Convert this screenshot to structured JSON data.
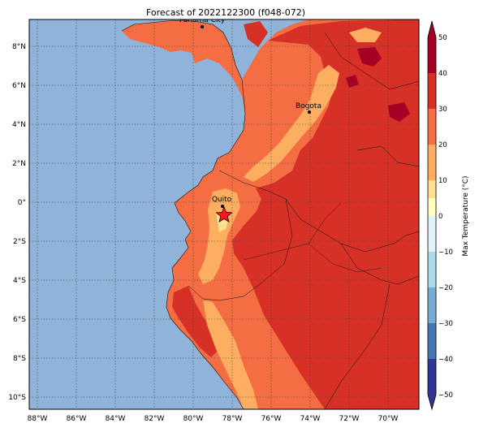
{
  "title": "Forecast of 2022122300 (f048-072)",
  "map": {
    "ocean_color": "#8fb3d9",
    "lon_ticks": [
      "88°W",
      "86°W",
      "84°W",
      "82°W",
      "80°W",
      "78°W",
      "76°W",
      "74°W",
      "72°W",
      "70°W"
    ],
    "lat_ticks": [
      "8°N",
      "6°N",
      "4°N",
      "2°N",
      "0°",
      "2°S",
      "4°S",
      "6°S",
      "8°S",
      "10°S"
    ],
    "cities": [
      {
        "name": "Panama City"
      },
      {
        "name": "Bogota"
      },
      {
        "name": "Quito"
      }
    ],
    "marker": "red-star-marker"
  },
  "colorbar": {
    "label": "Max Temperature (°C)",
    "ticks": [
      "50",
      "40",
      "30",
      "20",
      "10",
      "0",
      "−10",
      "−20",
      "−30",
      "−40",
      "−50"
    ],
    "colors": [
      "#a50026",
      "#d73027",
      "#f46d43",
      "#fdae61",
      "#fee090",
      "#ffffbf",
      "#e0f3f8",
      "#abd9e9",
      "#74add1",
      "#4575b4",
      "#313695"
    ]
  }
}
